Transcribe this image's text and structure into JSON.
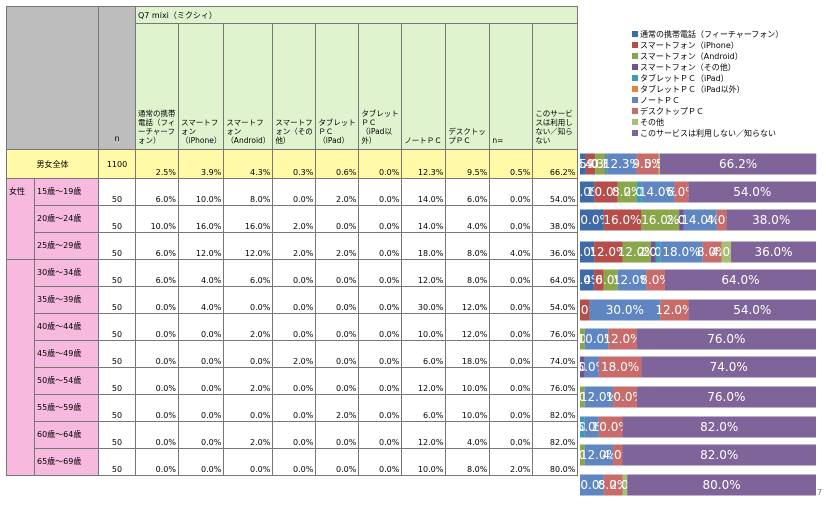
{
  "table": {
    "question": "Q7 mixi（ミクシィ）",
    "n_header": "n",
    "columns": [
      "通常の携帯電話（フィーチャーフォン）",
      "スマートフォン（iPhone）",
      "スマートフォン（Android）",
      "スマートフォン（その他）",
      "タブレットＰＣ（iPad）",
      "タブレットＰＣ（iPad以外）",
      "ノートＰＣ",
      "デスクトップＰＣ",
      "n=",
      "このサービスは利用しない／知らない"
    ],
    "total_label": "男女全体",
    "total_n": "1100",
    "total_values": [
      "2.5%",
      "3.9%",
      "4.3%",
      "0.3%",
      "0.6%",
      "0.0%",
      "12.3%",
      "9.5%",
      "0.5%",
      "66.2%"
    ],
    "female_label": "女性",
    "rows": [
      {
        "age": "15歳～19歳",
        "n": "50",
        "values": [
          "6.0%",
          "10.0%",
          "8.0%",
          "0.0%",
          "2.0%",
          "0.0%",
          "14.0%",
          "6.0%",
          "0.0%",
          "54.0%"
        ]
      },
      {
        "age": "20歳～24歳",
        "n": "50",
        "values": [
          "10.0%",
          "16.0%",
          "16.0%",
          "2.0%",
          "0.0%",
          "0.0%",
          "14.0%",
          "4.0%",
          "0.0%",
          "38.0%"
        ]
      },
      {
        "age": "25歳～29歳",
        "n": "50",
        "values": [
          "6.0%",
          "12.0%",
          "12.0%",
          "2.0%",
          "2.0%",
          "0.0%",
          "18.0%",
          "8.0%",
          "4.0%",
          "36.0%"
        ]
      },
      {
        "age": "30歳～34歳",
        "n": "50",
        "values": [
          "6.0%",
          "4.0%",
          "6.0%",
          "0.0%",
          "0.0%",
          "0.0%",
          "12.0%",
          "8.0%",
          "0.0%",
          "64.0%"
        ]
      },
      {
        "age": "35歳～39歳",
        "n": "50",
        "values": [
          "0.0%",
          "4.0%",
          "0.0%",
          "0.0%",
          "0.0%",
          "0.0%",
          "30.0%",
          "12.0%",
          "0.0%",
          "54.0%"
        ]
      },
      {
        "age": "40歳～44歳",
        "n": "50",
        "values": [
          "0.0%",
          "0.0%",
          "2.0%",
          "0.0%",
          "0.0%",
          "0.0%",
          "10.0%",
          "12.0%",
          "0.0%",
          "76.0%"
        ]
      },
      {
        "age": "45歳～49歳",
        "n": "50",
        "values": [
          "0.0%",
          "0.0%",
          "0.0%",
          "2.0%",
          "0.0%",
          "0.0%",
          "6.0%",
          "18.0%",
          "0.0%",
          "74.0%"
        ]
      },
      {
        "age": "50歳～54歳",
        "n": "50",
        "values": [
          "0.0%",
          "0.0%",
          "2.0%",
          "0.0%",
          "0.0%",
          "0.0%",
          "12.0%",
          "10.0%",
          "0.0%",
          "76.0%"
        ]
      },
      {
        "age": "55歳～59歳",
        "n": "50",
        "values": [
          "0.0%",
          "0.0%",
          "0.0%",
          "0.0%",
          "2.0%",
          "0.0%",
          "6.0%",
          "10.0%",
          "0.0%",
          "82.0%"
        ]
      },
      {
        "age": "60歳～64歳",
        "n": "50",
        "values": [
          "0.0%",
          "0.0%",
          "2.0%",
          "0.0%",
          "0.0%",
          "0.0%",
          "12.0%",
          "4.0%",
          "0.0%",
          "82.0%"
        ]
      },
      {
        "age": "65歳～69歳",
        "n": "50",
        "values": [
          "0.0%",
          "0.0%",
          "0.0%",
          "0.0%",
          "0.0%",
          "0.0%",
          "10.0%",
          "8.0%",
          "2.0%",
          "80.0%"
        ]
      }
    ]
  },
  "page_number": "7",
  "chart_data": {
    "type": "bar",
    "orientation": "horizontal",
    "stacked": true,
    "categories": [
      "男女全体",
      "15歳～19歳",
      "20歳～24歳",
      "25歳～29歳",
      "30歳～34歳",
      "35歳～39歳",
      "40歳～44歳",
      "45歳～49歳",
      "50歳～54歳",
      "55歳～59歳",
      "60歳～64歳",
      "65歳～69歳"
    ],
    "series": [
      {
        "name": "通常の携帯電話（フィーチャーフォン）",
        "color": "#3e6aa8",
        "values": [
          2.5,
          6.0,
          10.0,
          6.0,
          6.0,
          0.0,
          0.0,
          0.0,
          0.0,
          0.0,
          0.0,
          0.0
        ]
      },
      {
        "name": "スマートフォン（iPhone）",
        "color": "#b54d4a",
        "values": [
          3.9,
          10.0,
          16.0,
          12.0,
          4.0,
          4.0,
          0.0,
          0.0,
          0.0,
          0.0,
          0.0,
          0.0
        ]
      },
      {
        "name": "スマートフォン（Android）",
        "color": "#8aa64a",
        "values": [
          4.3,
          8.0,
          16.0,
          12.0,
          6.0,
          0.0,
          2.0,
          0.0,
          2.0,
          0.0,
          2.0,
          0.0
        ]
      },
      {
        "name": "スマートフォン（その他）",
        "color": "#6e548f",
        "values": [
          0.3,
          0.0,
          2.0,
          2.0,
          0.0,
          0.0,
          0.0,
          2.0,
          0.0,
          0.0,
          0.0,
          0.0
        ]
      },
      {
        "name": "タブレットＰＣ（iPad）",
        "color": "#3f9ab3",
        "values": [
          0.6,
          2.0,
          0.0,
          2.0,
          0.0,
          0.0,
          0.0,
          0.0,
          0.0,
          2.0,
          0.0,
          0.0
        ]
      },
      {
        "name": "タブレットＰＣ（iPad以外）",
        "color": "#e0843a",
        "values": [
          0.0,
          0.0,
          0.0,
          0.0,
          0.0,
          0.0,
          0.0,
          0.0,
          0.0,
          0.0,
          0.0,
          0.0
        ]
      },
      {
        "name": "ノートＰＣ",
        "color": "#5f86c0",
        "values": [
          12.3,
          14.0,
          14.0,
          18.0,
          12.0,
          30.0,
          10.0,
          6.0,
          12.0,
          6.0,
          12.0,
          10.0
        ]
      },
      {
        "name": "デスクトップＰＣ",
        "color": "#c86b6b",
        "values": [
          9.5,
          6.0,
          4.0,
          8.0,
          8.0,
          12.0,
          12.0,
          18.0,
          10.0,
          10.0,
          4.0,
          8.0
        ]
      },
      {
        "name": "その他",
        "color": "#a6c06f",
        "values": [
          0.5,
          0.0,
          0.0,
          4.0,
          0.0,
          0.0,
          0.0,
          0.0,
          0.0,
          0.0,
          0.0,
          2.0
        ]
      },
      {
        "name": "このサービスは利用しない／知らない",
        "color": "#7e6498",
        "values": [
          66.2,
          54.0,
          38.0,
          36.0,
          64.0,
          54.0,
          76.0,
          74.0,
          76.0,
          82.0,
          82.0,
          80.0
        ]
      }
    ],
    "xlim": [
      0,
      100
    ],
    "legend_position": "top-right"
  }
}
